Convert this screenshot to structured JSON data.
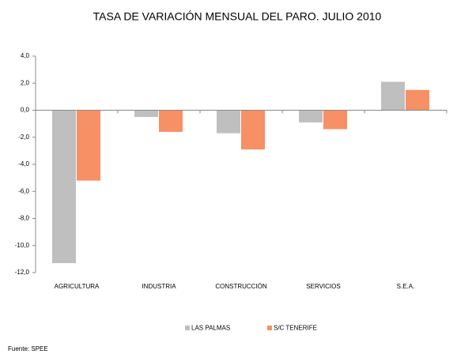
{
  "chart_data": {
    "type": "bar",
    "title": "TASA DE VARIACIÓN MENSUAL DEL PARO. JULIO 2010",
    "categories": [
      "AGRICULTURA",
      "INDUSTRIA",
      "CONSTRUCCIÓN",
      "SERVICIOS",
      "S.E.A."
    ],
    "series": [
      {
        "name": "LAS PALMAS",
        "color": "#bfbfbf",
        "values": [
          -11.3,
          -0.5,
          -1.7,
          -0.9,
          2.1
        ]
      },
      {
        "name": "S/C TENERIFE",
        "color": "#f79064",
        "values": [
          -5.2,
          -1.6,
          -2.9,
          -1.4,
          1.5
        ]
      }
    ],
    "ylim": [
      -12,
      4
    ],
    "yticks": [
      {
        "value": -12,
        "label": "-12,0"
      },
      {
        "value": -10,
        "label": "-10,0"
      },
      {
        "value": -8,
        "label": "-8,0"
      },
      {
        "value": -6,
        "label": "-6,0"
      },
      {
        "value": -4,
        "label": "-4,0"
      },
      {
        "value": -2,
        "label": "-2,0"
      },
      {
        "value": 0,
        "label": "0,0"
      },
      {
        "value": 2,
        "label": "2,0"
      },
      {
        "value": 4,
        "label": "4,0"
      }
    ],
    "legend": "bottom",
    "source": "Fuente: SPEE"
  }
}
